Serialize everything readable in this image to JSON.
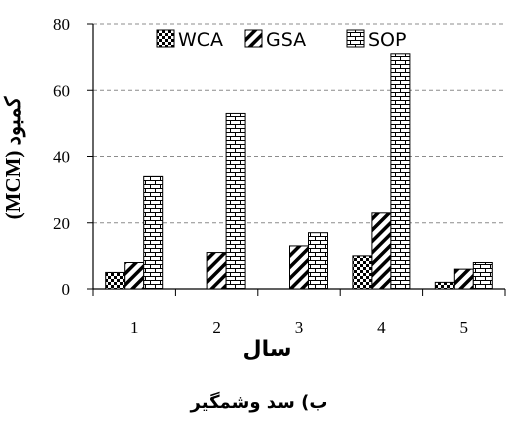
{
  "chart_data": {
    "type": "bar",
    "categories": [
      "1",
      "2",
      "3",
      "4",
      "5"
    ],
    "series": [
      {
        "name": "WCA",
        "pattern": "checker",
        "values": [
          5,
          0,
          0,
          10,
          2
        ]
      },
      {
        "name": "GSA",
        "pattern": "diagonal",
        "values": [
          8,
          11,
          13,
          23,
          6
        ]
      },
      {
        "name": "SOP",
        "pattern": "brick",
        "values": [
          34,
          53,
          17,
          71,
          8
        ]
      }
    ],
    "xlabel": "سال",
    "ylabel": "کمبود (MCM)",
    "ylim": [
      0,
      80
    ],
    "yticks": [
      0,
      20,
      40,
      60,
      80
    ],
    "grid": "horizontal-dashed",
    "legend": "top",
    "colors": {
      "fill": "#ffffff",
      "stroke": "#000000",
      "grid": "#8c8c8c"
    }
  },
  "caption": "ب) سد وشمگیر"
}
